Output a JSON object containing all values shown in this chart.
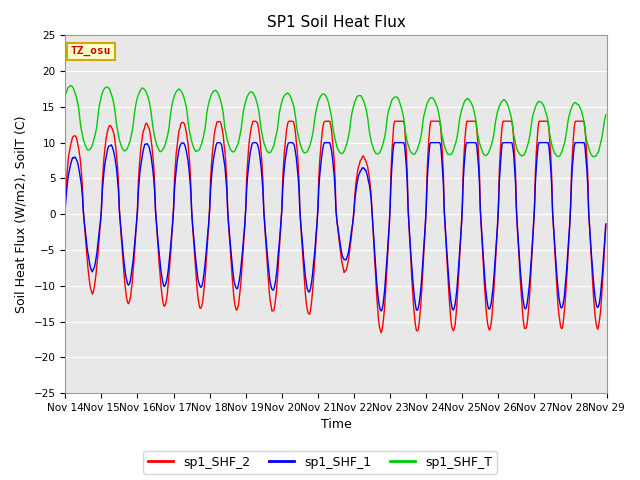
{
  "title": "SP1 Soil Heat Flux",
  "xlabel": "Time",
  "ylabel": "Soil Heat Flux (W/m2), SoilT (C)",
  "ylim": [
    -25,
    25
  ],
  "yticks": [
    -25,
    -20,
    -15,
    -10,
    -5,
    0,
    5,
    10,
    15,
    20,
    25
  ],
  "xtick_labels": [
    "Nov 14",
    "Nov 15",
    "Nov 16",
    "Nov 17",
    "Nov 18",
    "Nov 19",
    "Nov 20",
    "Nov 21",
    "Nov 22",
    "Nov 23",
    "Nov 24",
    "Nov 25",
    "Nov 26",
    "Nov 27",
    "Nov 28",
    "Nov 29"
  ],
  "color_shf2": "#ff0000",
  "color_shf1": "#0000ff",
  "color_shft": "#00cc00",
  "bg_color": "#e8e8e8",
  "fig_bg_color": "#ffffff",
  "legend_labels": [
    "sp1_SHF_2",
    "sp1_SHF_1",
    "sp1_SHF_T"
  ],
  "tz_label": "TZ_osu",
  "tz_text_color": "#cc0000",
  "tz_bg_color": "#ffffcc",
  "tz_edge_color": "#ccaa00",
  "line_width": 1.0,
  "title_fontsize": 11,
  "axis_fontsize": 9,
  "tick_fontsize": 7.5
}
